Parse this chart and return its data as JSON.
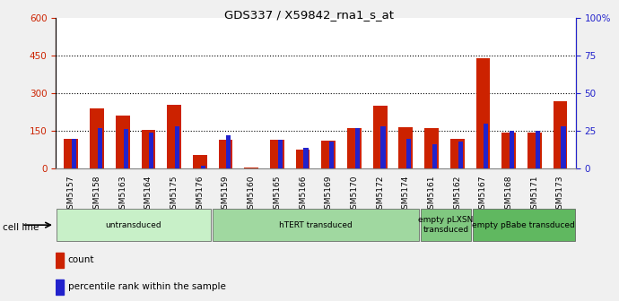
{
  "title": "GDS337 / X59842_rna1_s_at",
  "samples": [
    "GSM5157",
    "GSM5158",
    "GSM5163",
    "GSM5164",
    "GSM5175",
    "GSM5176",
    "GSM5159",
    "GSM5160",
    "GSM5165",
    "GSM5166",
    "GSM5169",
    "GSM5170",
    "GSM5172",
    "GSM5174",
    "GSM5161",
    "GSM5162",
    "GSM5167",
    "GSM5168",
    "GSM5171",
    "GSM5173"
  ],
  "counts": [
    120,
    240,
    210,
    155,
    255,
    55,
    115,
    5,
    115,
    75,
    110,
    160,
    250,
    165,
    160,
    120,
    440,
    145,
    145,
    270
  ],
  "percentiles": [
    20,
    27,
    26,
    24,
    28,
    2,
    22,
    0,
    19,
    14,
    18,
    27,
    28,
    20,
    16,
    18,
    30,
    25,
    25,
    28
  ],
  "groups": [
    {
      "label": "untransduced",
      "start": 0,
      "end": 6,
      "color": "#c8f0c8"
    },
    {
      "label": "hTERT transduced",
      "start": 6,
      "end": 14,
      "color": "#a0d8a0"
    },
    {
      "label": "empty pLXSN\ntransduced",
      "start": 14,
      "end": 16,
      "color": "#80c880"
    },
    {
      "label": "empty pBabe transduced",
      "start": 16,
      "end": 20,
      "color": "#60b860"
    }
  ],
  "ylim_left": [
    0,
    600
  ],
  "ylim_right": [
    0,
    100
  ],
  "yticks_left": [
    0,
    150,
    300,
    450,
    600
  ],
  "yticks_right": [
    0,
    25,
    50,
    75,
    100
  ],
  "ytick_labels_right": [
    "0",
    "25",
    "50",
    "75",
    "100%"
  ],
  "bar_color": "#cc2200",
  "percentile_color": "#2222cc",
  "bar_width": 0.55,
  "percentile_bar_width": 0.18,
  "cell_line_label": "cell line",
  "legend_count": "count",
  "legend_percentile": "percentile rank within the sample",
  "background_color": "#f0f0f0",
  "plot_bg_color": "#ffffff",
  "grid_color": "#000000",
  "hgrid_ticks": [
    150,
    300,
    450
  ]
}
